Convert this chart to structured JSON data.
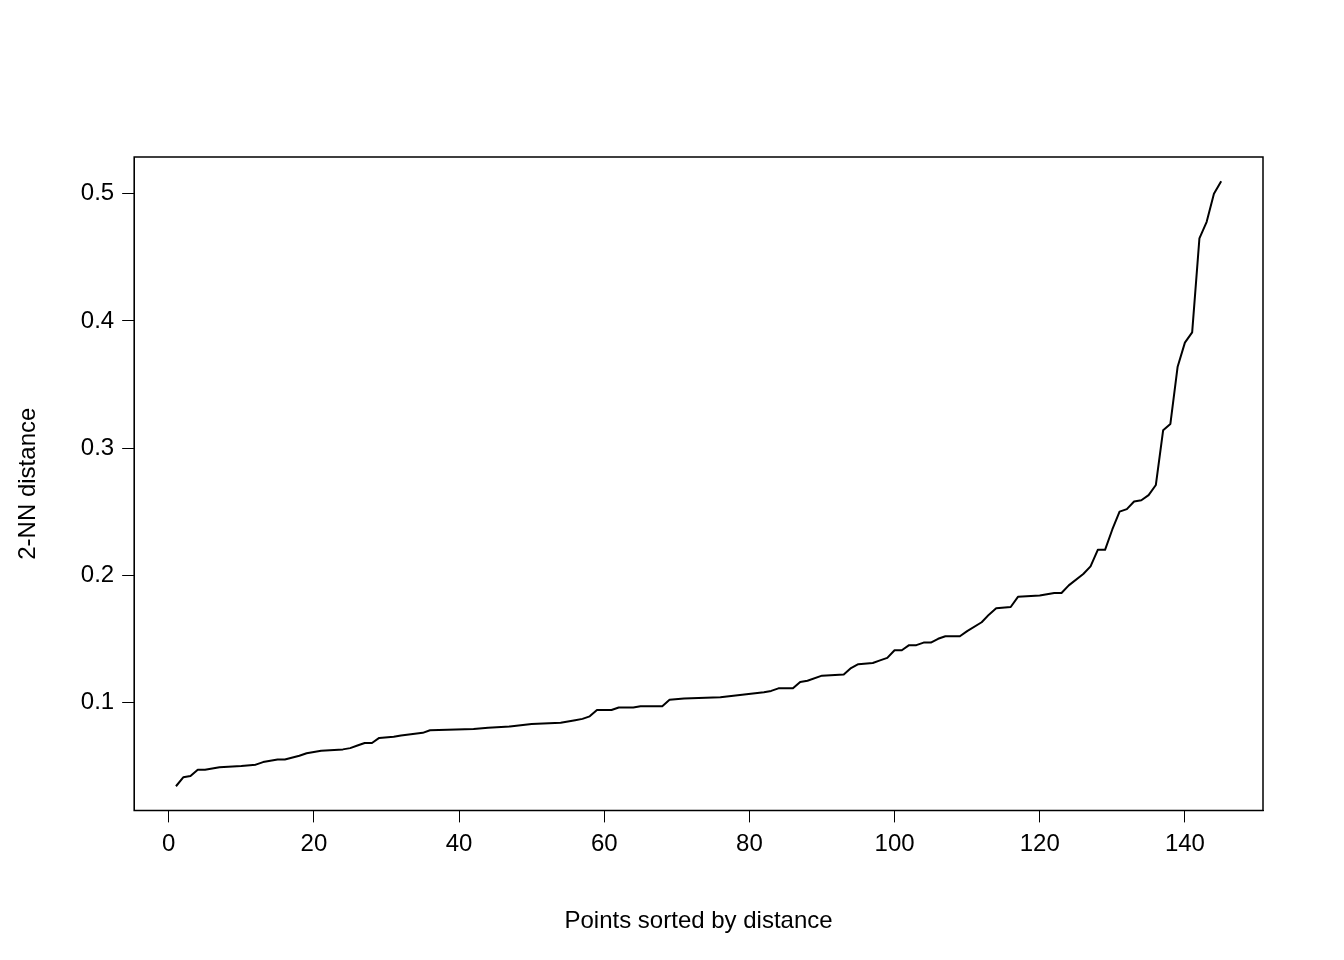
{
  "chart_data": {
    "type": "line",
    "xlabel": "Points sorted by distance",
    "ylabel": "2-NN distance",
    "xlim": [
      -4.76,
      150.76
    ],
    "xticks": [
      0,
      20,
      40,
      60,
      80,
      100,
      120,
      140
    ],
    "ylim": [
      0.015,
      0.529
    ],
    "yticks": [
      0.1,
      0.2,
      0.3,
      0.4,
      0.5
    ],
    "grid": false,
    "legend": false,
    "marker": "none",
    "line_style": "solid",
    "series": [
      {
        "color": "#000000",
        "x": [
          1,
          2,
          3,
          4,
          5,
          7,
          10,
          12,
          13,
          15,
          16,
          18,
          19,
          21,
          24,
          25,
          26,
          27,
          28,
          29,
          31,
          32,
          35,
          36,
          42,
          44,
          47,
          50,
          54,
          56,
          57,
          58,
          59,
          61,
          62,
          64,
          65,
          68,
          69,
          71,
          76,
          79,
          82,
          83,
          84,
          86,
          87,
          88,
          90,
          93,
          94,
          95,
          97,
          98,
          99,
          100,
          101,
          102,
          103,
          104,
          105,
          106,
          107,
          109,
          110,
          112,
          113,
          114,
          116,
          117,
          120,
          122,
          123,
          124,
          126,
          127,
          128,
          129,
          130,
          131,
          132,
          133,
          134,
          135,
          136,
          137,
          138,
          139,
          140,
          141,
          142,
          143,
          144,
          145
        ],
        "values": [
          0.034,
          0.041,
          0.042,
          0.047,
          0.047,
          0.049,
          0.05,
          0.051,
          0.053,
          0.055,
          0.055,
          0.058,
          0.06,
          0.062,
          0.063,
          0.064,
          0.066,
          0.068,
          0.068,
          0.072,
          0.073,
          0.074,
          0.076,
          0.078,
          0.079,
          0.08,
          0.081,
          0.083,
          0.084,
          0.086,
          0.087,
          0.089,
          0.094,
          0.094,
          0.096,
          0.096,
          0.097,
          0.097,
          0.102,
          0.103,
          0.104,
          0.106,
          0.108,
          0.109,
          0.111,
          0.111,
          0.116,
          0.117,
          0.121,
          0.122,
          0.127,
          0.13,
          0.131,
          0.133,
          0.135,
          0.141,
          0.141,
          0.145,
          0.145,
          0.147,
          0.147,
          0.15,
          0.152,
          0.152,
          0.156,
          0.163,
          0.169,
          0.174,
          0.175,
          0.183,
          0.184,
          0.186,
          0.186,
          0.192,
          0.201,
          0.207,
          0.22,
          0.22,
          0.236,
          0.25,
          0.252,
          0.258,
          0.259,
          0.263,
          0.271,
          0.314,
          0.319,
          0.364,
          0.383,
          0.391,
          0.465,
          0.478,
          0.5,
          0.51
        ]
      }
    ]
  }
}
